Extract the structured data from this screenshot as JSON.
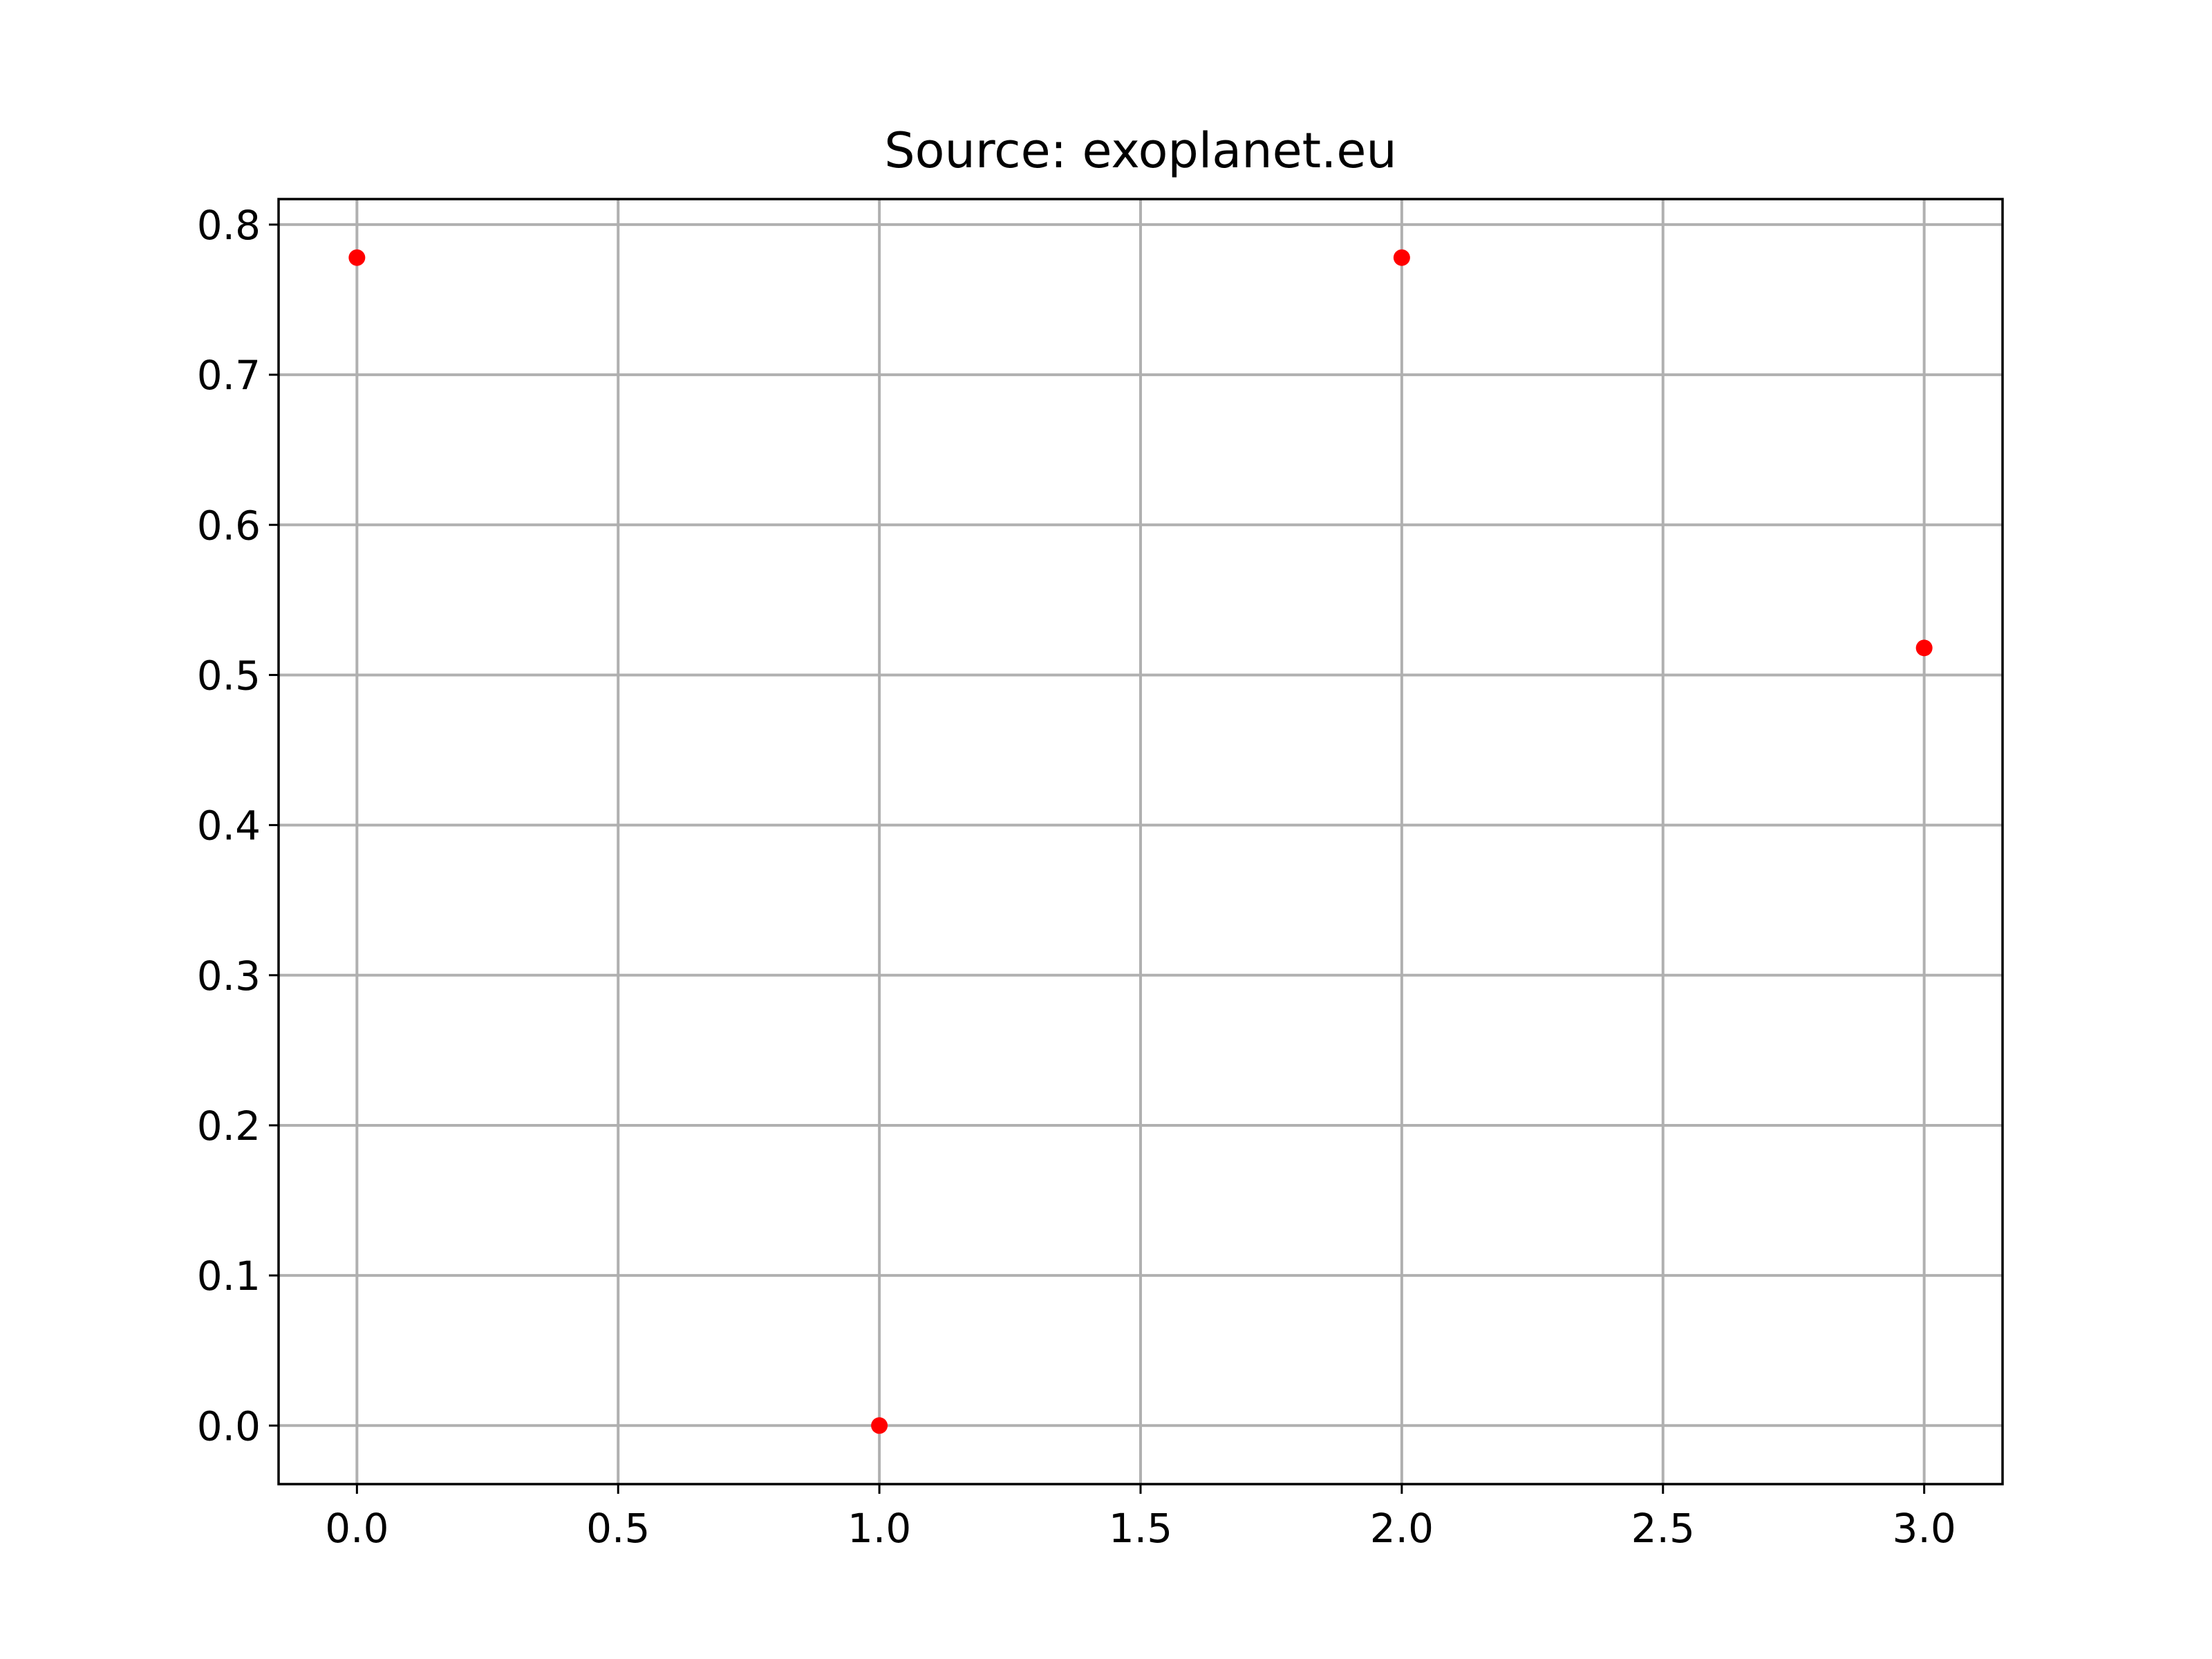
{
  "chart_data": {
    "type": "scatter",
    "title": "Source: exoplanet.eu",
    "xlabel": "",
    "ylabel": "",
    "xlim": [
      -0.15,
      3.15
    ],
    "ylim": [
      -0.039,
      0.817
    ],
    "x_ticks": [
      0.0,
      0.5,
      1.0,
      1.5,
      2.0,
      2.5,
      3.0
    ],
    "x_tick_labels": [
      "0.0",
      "0.5",
      "1.0",
      "1.5",
      "2.0",
      "2.5",
      "3.0"
    ],
    "y_ticks": [
      0.0,
      0.1,
      0.2,
      0.3,
      0.4,
      0.5,
      0.6,
      0.7,
      0.8
    ],
    "y_tick_labels": [
      "0.0",
      "0.1",
      "0.2",
      "0.3",
      "0.4",
      "0.5",
      "0.6",
      "0.7",
      "0.8"
    ],
    "grid": true,
    "legend": "none",
    "series": [
      {
        "color": "#ff0000",
        "marker": "circle",
        "points": [
          {
            "x": 0,
            "y": 0.778
          },
          {
            "x": 1,
            "y": 0.0
          },
          {
            "x": 2,
            "y": 0.778
          },
          {
            "x": 3,
            "y": 0.518
          }
        ]
      }
    ]
  }
}
